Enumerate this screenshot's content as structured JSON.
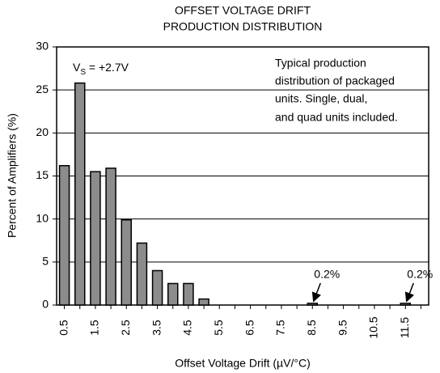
{
  "chart_data": {
    "type": "bar",
    "title": [
      "OFFSET VOLTAGE DRIFT",
      "PRODUCTION DISTRIBUTION"
    ],
    "xlabel": "Offset Voltage Drift (µV/°C)",
    "ylabel": "Percent of Amplifiers (%)",
    "categories": [
      "0.5",
      null,
      "1.5",
      null,
      "2.5",
      null,
      "3.5",
      null,
      "4.5",
      null,
      "5.5",
      null,
      "6.5",
      null,
      "7.5",
      null,
      "8.5",
      null,
      "9.5",
      null,
      "10.5",
      null,
      "11.5",
      null
    ],
    "values": [
      16.2,
      25.8,
      15.5,
      15.9,
      9.9,
      7.2,
      4.0,
      2.5,
      2.5,
      0.7,
      0,
      0,
      0,
      0,
      0,
      0,
      0.2,
      0,
      0,
      0,
      0,
      0,
      0.2,
      0
    ],
    "value_labels": [
      null,
      null,
      null,
      null,
      null,
      null,
      null,
      null,
      null,
      null,
      null,
      null,
      null,
      null,
      null,
      null,
      "0.2%",
      null,
      null,
      null,
      null,
      null,
      "0.2%",
      null
    ],
    "color": "#8c8c8c",
    "ylim": [
      0,
      30
    ],
    "yticks": [
      0,
      5,
      10,
      15,
      20,
      25,
      30
    ],
    "grid": true,
    "annotations": [
      {
        "parts": [
          "V",
          "S",
          " = +2.7V"
        ]
      },
      {
        "lines": [
          "Typical production",
          "distribution of packaged",
          "units. Single, dual,",
          "and quad units included."
        ]
      }
    ]
  }
}
